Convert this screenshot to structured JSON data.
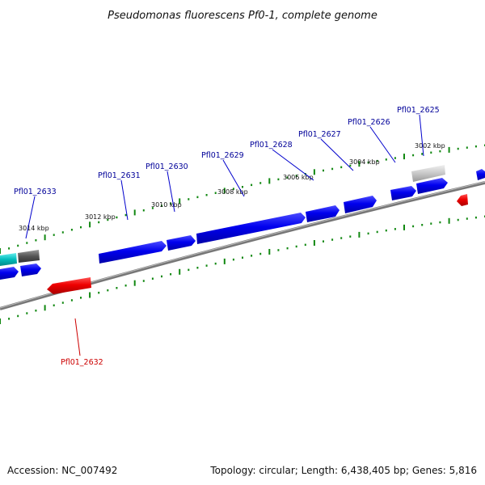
{
  "title": "Pseudomonas fluorescens Pf0-1, complete genome",
  "footer": {
    "accession": "Accession: NC_007492",
    "summary": "Topology: circular; Length: 6,438,405 bp; Genes: 5,816"
  },
  "colors": {
    "forward_gene": "#0000ee",
    "reverse_gene": "#ee0000",
    "backbone": "#777777",
    "ticks": "#118811",
    "forward_label": "#000099",
    "reverse_label": "#cc0000"
  },
  "scale_labels": [
    "3002 kbp",
    "3004 kbp",
    "3006 kbp",
    "3008 kbp",
    "3010 kbp",
    "3012 kbp",
    "3014 kbp"
  ],
  "gene_labels": {
    "forward": [
      "Pfl01_2625",
      "Pfl01_2626",
      "Pfl01_2627",
      "Pfl01_2628",
      "Pfl01_2629",
      "Pfl01_2630",
      "Pfl01_2631",
      "Pfl01_2633"
    ],
    "reverse": [
      "Pfl01_2632"
    ]
  }
}
